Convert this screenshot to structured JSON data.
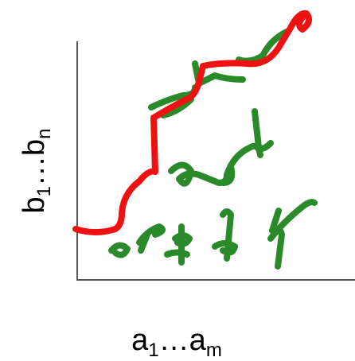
{
  "x_label": {
    "base1": "a",
    "sub1": "1",
    "base2": "…a",
    "sub2": "m"
  },
  "y_label": {
    "base1": "b",
    "sub1": "1",
    "base2": "…b",
    "sub2": "n"
  }
}
